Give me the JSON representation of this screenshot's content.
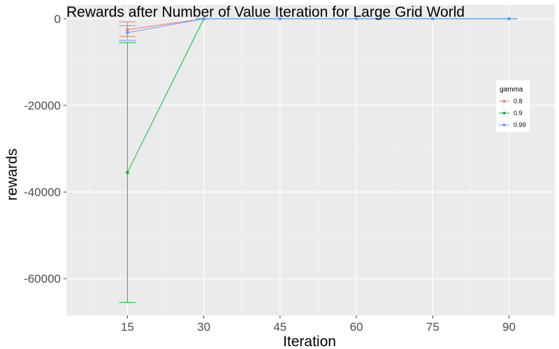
{
  "chart_data": {
    "type": "line",
    "title": "Rewards after Number of Value Iteration for Large Grid World",
    "xlabel": "Iteration",
    "ylabel": "rewards",
    "x_ticks": [
      15,
      30,
      45,
      60,
      75,
      90
    ],
    "y_ticks": [
      0,
      -20000,
      -40000,
      -60000
    ],
    "xlim": [
      3,
      99
    ],
    "ylim": [
      -68500,
      3200
    ],
    "grid": true,
    "legend": {
      "title": "gamma",
      "position": "right"
    },
    "series": [
      {
        "name": "0.8",
        "color": "#F8766D",
        "x": [
          15,
          30,
          45,
          60,
          75,
          90
        ],
        "y": [
          -2500,
          0,
          0,
          0,
          0,
          0
        ],
        "err_low": [
          -4100,
          0,
          0,
          0,
          0,
          0
        ],
        "err_high": [
          -700,
          0,
          0,
          0,
          0,
          0
        ]
      },
      {
        "name": "0.9",
        "color": "#00BA38",
        "x": [
          15,
          30,
          45,
          60,
          75,
          90
        ],
        "y": [
          -35500,
          0,
          0,
          0,
          0,
          0
        ],
        "err_low": [
          -65500,
          0,
          0,
          0,
          0,
          0
        ],
        "err_high": [
          -5500,
          0,
          0,
          0,
          0,
          0
        ]
      },
      {
        "name": "0.99",
        "color": "#619CFF",
        "x": [
          15,
          30,
          45,
          60,
          75,
          90
        ],
        "y": [
          -3200,
          0,
          0,
          0,
          0,
          0
        ],
        "err_low": [
          -5000,
          0,
          0,
          0,
          0,
          0
        ],
        "err_high": [
          -1600,
          0,
          0,
          0,
          0,
          0
        ]
      }
    ]
  }
}
